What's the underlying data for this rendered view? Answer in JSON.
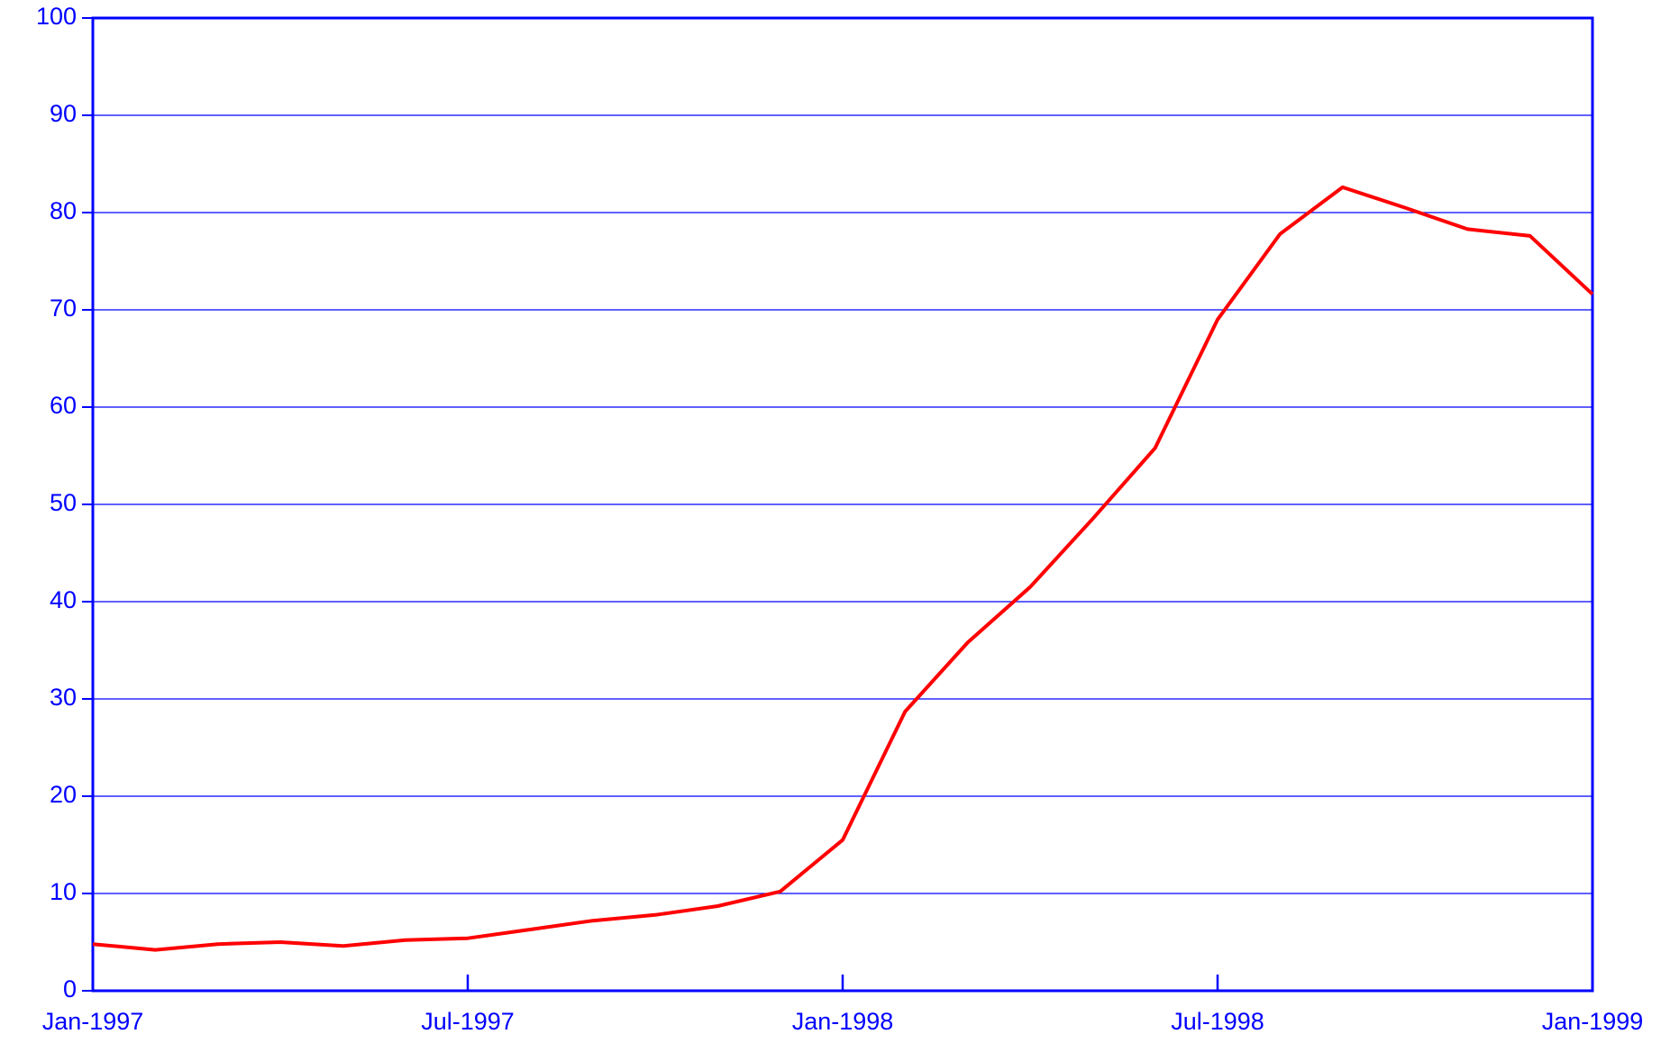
{
  "chart_data": {
    "type": "line",
    "categories": [
      "Jan-1997",
      null,
      null,
      null,
      null,
      null,
      "Jul-1997",
      null,
      null,
      null,
      null,
      null,
      "Jan-1998",
      null,
      null,
      null,
      null,
      null,
      "Jul-1998",
      null,
      null,
      null,
      null,
      null,
      "Jan-1999"
    ],
    "values": [
      4.8,
      4.2,
      4.8,
      5.0,
      4.6,
      5.2,
      5.4,
      6.3,
      7.2,
      7.8,
      8.7,
      10.2,
      15.5,
      28.7,
      35.8,
      41.5,
      48.5,
      55.8,
      69.0,
      77.8,
      82.6,
      80.5,
      78.3,
      77.6,
      71.6
    ],
    "color": "#ff0000",
    "axis_color": "#0000ff",
    "ylim": [
      0,
      100
    ],
    "yticks": [
      0,
      10,
      20,
      30,
      40,
      50,
      60,
      70,
      80,
      90,
      100
    ],
    "grid": true
  }
}
